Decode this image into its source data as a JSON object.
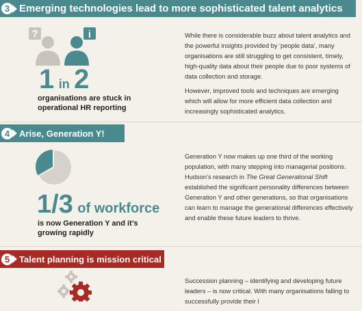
{
  "section3": {
    "number": "3",
    "title": "Emerging technologies lead to more sophisticated talent analytics",
    "stat_one": "1",
    "stat_in": "in",
    "stat_two": "2",
    "caption_line1": "organisations are stuck in",
    "caption_line2": "operational HR reporting",
    "paragraph1": "While there is considerable buzz about talent analytics and the powerful insights provided by ‘people data’, many organisations are still struggling to get consistent, timely, high-quality data about their people due to poor systems of data collection and storage.",
    "paragraph2": "However, improved tools and techniques are emerging which will allow for more efficient data collection and increasingly sophisticated analytics.",
    "colors": {
      "banner": "#4a8a8e",
      "person_grey": "#c9c4bb",
      "person_teal": "#4a8a8e"
    }
  },
  "section4": {
    "number": "4",
    "title": "Arise, Generation Y!",
    "stat": "1/3",
    "stat_suffix": "of workforce",
    "caption_line1": "is now Generation Y and it’s",
    "caption_line2": "growing rapidly",
    "paragraph_part1": "Generation Y now makes up one third of the working population, with many stepping into managerial positions. Hudson’s research in ",
    "paragraph_italic": "The Great Generational Shift",
    "paragraph_part2": " established the significant personality differences between Generation Y and other generations, so that organisations can learn to manage the generational differences effectively and enable these future leaders to thrive.",
    "pie_values": [
      0.3333,
      0.6667
    ],
    "colors": {
      "banner": "#4a8a8e",
      "pie_highlight": "#4a8a8e",
      "pie_rest": "#d6d2cb"
    }
  },
  "section5": {
    "number": "5",
    "title": "Talent planning is mission critical",
    "paragraph": "Succession planning – identifying and developing future leaders – is now critical. With many organisations falling to successfully provide their l",
    "colors": {
      "banner": "#a82a25",
      "gear_red": "#a82a25",
      "gear_grey": "#c9c4bb"
    }
  }
}
